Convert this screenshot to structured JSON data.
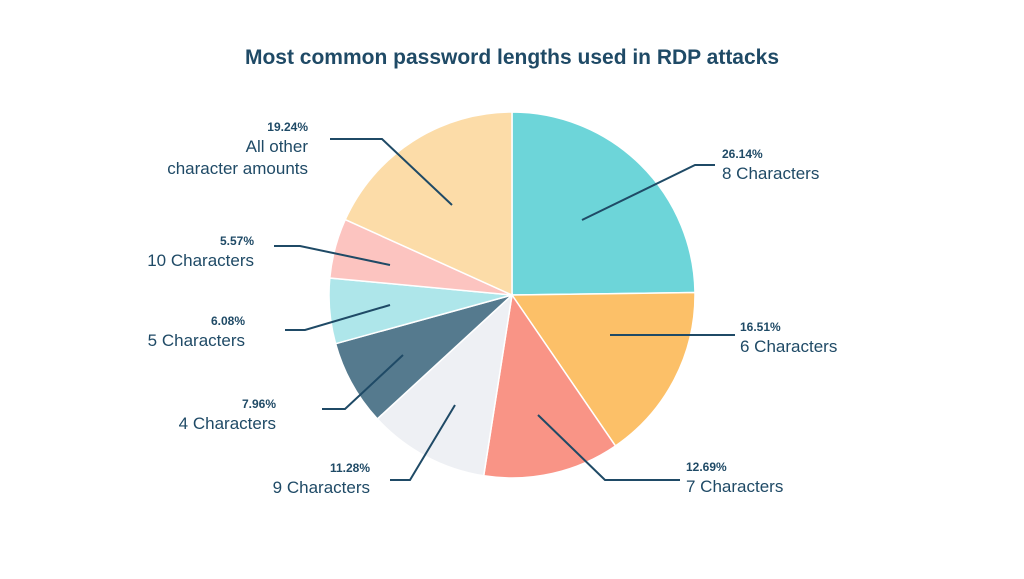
{
  "chart_data": {
    "type": "pie",
    "title": "Most common password lengths used in RDP attacks",
    "slices": [
      {
        "label": "8 Characters",
        "value": 26.14,
        "value_label": "26.14%",
        "color": "#6dd5d9"
      },
      {
        "label": "6 Characters",
        "value": 16.51,
        "value_label": "16.51%",
        "color": "#fcc068"
      },
      {
        "label": "7 Characters",
        "value": 12.69,
        "value_label": "12.69%",
        "color": "#f99486"
      },
      {
        "label": "9 Characters",
        "value": 11.28,
        "value_label": "11.28%",
        "color": "#eef0f4"
      },
      {
        "label": "4 Characters",
        "value": 7.96,
        "value_label": "7.96%",
        "color": "#557a8e"
      },
      {
        "label": "5 Characters",
        "value": 6.08,
        "value_label": "6.08%",
        "color": "#aee6ea"
      },
      {
        "label": "10 Characters",
        "value": 5.57,
        "value_label": "5.57%",
        "color": "#fcc4c0"
      },
      {
        "label": "All other character amounts",
        "label_lines": [
          "All other",
          "character amounts"
        ],
        "value": 19.24,
        "value_label": "19.24%",
        "color": "#fcdca8"
      }
    ],
    "start_angle": "12 o'clock",
    "direction": "clockwise",
    "label_color": "#1f4a66",
    "leader_color": "#1f4a66"
  }
}
